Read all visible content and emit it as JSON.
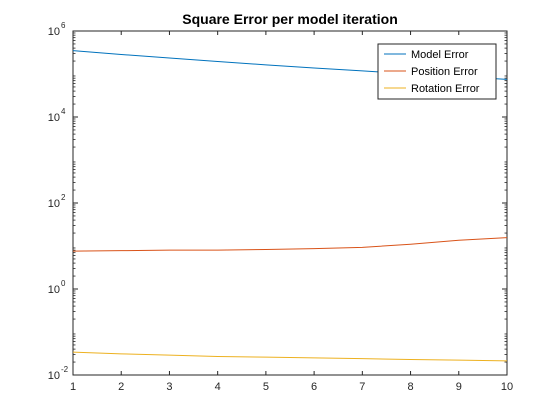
{
  "chart_data": {
    "type": "line",
    "title": "Square Error per model iteration",
    "xlabel": "",
    "ylabel": "",
    "x": [
      1,
      2,
      3,
      4,
      5,
      6,
      7,
      8,
      9,
      10
    ],
    "xlim": [
      1,
      10
    ],
    "ylim": [
      0.01,
      1000000
    ],
    "yscale": "log",
    "x_ticks": [
      "1",
      "2",
      "3",
      "4",
      "5",
      "6",
      "7",
      "8",
      "9",
      "10"
    ],
    "y_ticks": [
      {
        "value": 0.01,
        "base": "10",
        "exp": "-2"
      },
      {
        "value": 1,
        "base": "10",
        "exp": "0"
      },
      {
        "value": 100,
        "base": "10",
        "exp": "2"
      },
      {
        "value": 10000,
        "base": "10",
        "exp": "4"
      },
      {
        "value": 1000000,
        "base": "10",
        "exp": "6"
      }
    ],
    "grid": false,
    "legend_position": "top-right",
    "series": [
      {
        "name": "Model Error",
        "color": "#0072BD",
        "values": [
          350000,
          285000,
          235000,
          195000,
          163000,
          138000,
          118000,
          101000,
          87000,
          75000
        ]
      },
      {
        "name": "Position Error",
        "color": "#D95319",
        "values": [
          7.6,
          7.8,
          8.0,
          8.0,
          8.3,
          8.7,
          9.3,
          11.0,
          13.6,
          15.7
        ]
      },
      {
        "name": "Rotation Error",
        "color": "#EDB120",
        "values": [
          0.034,
          0.031,
          0.029,
          0.027,
          0.026,
          0.025,
          0.024,
          0.023,
          0.0222,
          0.0213
        ]
      }
    ]
  }
}
